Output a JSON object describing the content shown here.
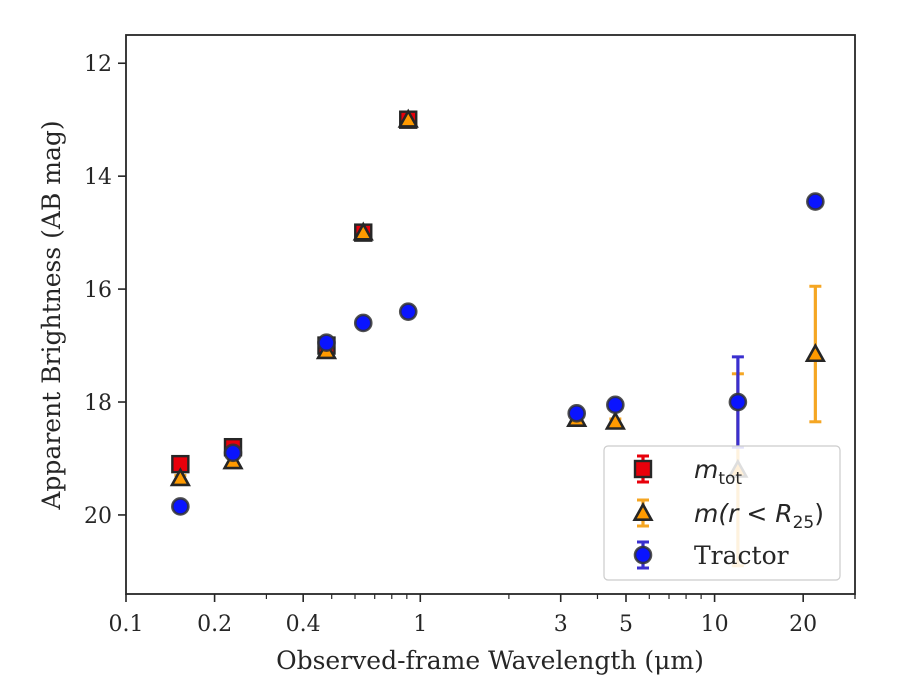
{
  "chart_data": {
    "type": "scatter",
    "xlabel": "Observed-frame Wavelength (μm)",
    "ylabel": "Apparent Brightness (AB mag)",
    "xscale": "log",
    "xlim": [
      0.1,
      30
    ],
    "ylim": [
      21.4,
      11.5
    ],
    "y_inverted": true,
    "x_ticks": [
      {
        "value": 0.1,
        "label": "0.1"
      },
      {
        "value": 0.2,
        "label": "0.2"
      },
      {
        "value": 0.4,
        "label": "0.4"
      },
      {
        "value": 1,
        "label": "1"
      },
      {
        "value": 3,
        "label": "3"
      },
      {
        "value": 5,
        "label": "5"
      },
      {
        "value": 10,
        "label": "10"
      },
      {
        "value": 20,
        "label": "20"
      }
    ],
    "y_ticks": [
      {
        "value": 12,
        "label": "12"
      },
      {
        "value": 14,
        "label": "14"
      },
      {
        "value": 16,
        "label": "16"
      },
      {
        "value": 18,
        "label": "18"
      },
      {
        "value": 20,
        "label": "20"
      }
    ],
    "grid": false,
    "legend": {
      "position": "bottom-right",
      "entries": [
        {
          "series": 0,
          "label": "m",
          "sub": "tot",
          "label_suffix": ""
        },
        {
          "series": 1,
          "label": "m(r < R",
          "sub": "25",
          "label_suffix": ")"
        },
        {
          "series": 2,
          "label": "Tractor",
          "sub": "",
          "label_suffix": ""
        }
      ]
    },
    "series": [
      {
        "name": "m_tot",
        "marker": "square",
        "color": "#e8000b",
        "edge": "#262626",
        "errcolor": "#e8000b",
        "points": [
          {
            "x": 0.153,
            "y": 19.1,
            "err": 0.1
          },
          {
            "x": 0.231,
            "y": 18.8,
            "err": 0.08
          },
          {
            "x": 0.48,
            "y": 17.0,
            "err": 0.05
          },
          {
            "x": 0.64,
            "y": 15.0,
            "err": 0.05
          },
          {
            "x": 0.91,
            "y": 13.0,
            "err": 0.05
          }
        ]
      },
      {
        "name": "m(r<R25)",
        "marker": "triangle",
        "color": "#ff9a00",
        "edge": "#262626",
        "errcolor": "#f5a623",
        "points": [
          {
            "x": 0.153,
            "y": 19.35,
            "err": 0.05
          },
          {
            "x": 0.231,
            "y": 19.05,
            "err": 0.05
          },
          {
            "x": 0.48,
            "y": 17.1,
            "err": 0.05
          },
          {
            "x": 0.64,
            "y": 15.0,
            "err": 0.05
          },
          {
            "x": 0.91,
            "y": 13.0,
            "err": 0.05
          },
          {
            "x": 3.4,
            "y": 18.3,
            "err": 0.05
          },
          {
            "x": 4.6,
            "y": 18.35,
            "err": 0.05
          },
          {
            "x": 12,
            "y": 19.2,
            "err": 1.7
          },
          {
            "x": 22,
            "y": 17.15,
            "err": 1.2
          }
        ]
      },
      {
        "name": "Tractor",
        "marker": "circle",
        "color": "#0a14ff",
        "edge": "#333333",
        "errcolor": "#3a2fcf",
        "points": [
          {
            "x": 0.153,
            "y": 19.85,
            "err": 0.05
          },
          {
            "x": 0.231,
            "y": 18.9,
            "err": 0.05
          },
          {
            "x": 0.48,
            "y": 16.95,
            "err": 0.05
          },
          {
            "x": 0.64,
            "y": 16.6,
            "err": 0.05
          },
          {
            "x": 0.91,
            "y": 16.4,
            "err": 0.05
          },
          {
            "x": 3.4,
            "y": 18.2,
            "err": 0.05
          },
          {
            "x": 4.6,
            "y": 18.05,
            "err": 0.05
          },
          {
            "x": 12,
            "y": 18.0,
            "err": 0.8
          },
          {
            "x": 22,
            "y": 14.45,
            "err": 0.05
          }
        ]
      }
    ]
  }
}
